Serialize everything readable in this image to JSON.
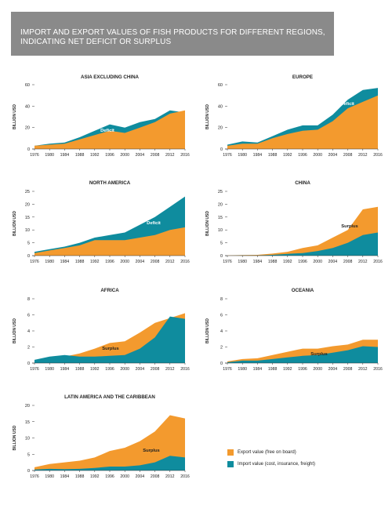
{
  "header": {
    "title": "IMPORT AND EXPORT VALUES OF FISH PRODUCTS FOR DIFFERENT REGIONS, INDICATING NET DEFICIT OR SURPLUS"
  },
  "colors": {
    "export": "#f39a2e",
    "import": "#0f8c9e",
    "banner": "#8a8a8a",
    "axis": "#333333"
  },
  "legend": {
    "export_label": "Export value (free on board)",
    "import_label": "Import value (cost, insurance, freight)"
  },
  "chart_data": [
    {
      "type": "area",
      "title": "ASIA EXCLUDING CHINA",
      "ylabel": "BILLION USD",
      "annotation": "Deficit",
      "ylim": [
        0,
        60
      ],
      "yticks": [
        0,
        20,
        40,
        60
      ],
      "x": [
        1976,
        1980,
        1984,
        1988,
        1992,
        1996,
        2000,
        2004,
        2008,
        2012,
        2016
      ],
      "xtick_labels": [
        "1976",
        "1980",
        "1984",
        "1988",
        "1992",
        "1996",
        "2000",
        "2004",
        "2008",
        "2012",
        "2016"
      ],
      "series": [
        {
          "name": "Export value (free on board)",
          "values": [
            3,
            4,
            5,
            9,
            13,
            17,
            15,
            20,
            25,
            33,
            36
          ]
        },
        {
          "name": "Import value (cost, insurance, freight)",
          "values": [
            3,
            5,
            6,
            11,
            17,
            23,
            20,
            25,
            28,
            36,
            34
          ]
        }
      ]
    },
    {
      "type": "area",
      "title": "EUROPE",
      "ylabel": "BILLION USD",
      "annotation": "Deficit",
      "ylim": [
        0,
        60
      ],
      "yticks": [
        0,
        20,
        40,
        60
      ],
      "x": [
        1976,
        1980,
        1984,
        1988,
        1992,
        1996,
        2000,
        2004,
        2008,
        2012,
        2016
      ],
      "xtick_labels": [
        "1976",
        "1980",
        "1984",
        "1988",
        "1992",
        "1996",
        "2000",
        "2004",
        "2008",
        "2012",
        "2016"
      ],
      "series": [
        {
          "name": "Export value (free on board)",
          "values": [
            3,
            5,
            5,
            10,
            14,
            17,
            18,
            26,
            38,
            44,
            50
          ]
        },
        {
          "name": "Import value (cost, insurance, freight)",
          "values": [
            4,
            7,
            6,
            12,
            18,
            22,
            22,
            32,
            46,
            55,
            57
          ]
        }
      ]
    },
    {
      "type": "area",
      "title": "NORTH AMERICA",
      "ylabel": "BILLION USD",
      "annotation": "Deficit",
      "ylim": [
        0,
        25
      ],
      "yticks": [
        0,
        5,
        10,
        15,
        20,
        25
      ],
      "x": [
        1976,
        1980,
        1984,
        1988,
        1992,
        1996,
        2000,
        2004,
        2008,
        2012,
        2016
      ],
      "xtick_labels": [
        "1976",
        "1980",
        "1984",
        "1988",
        "1992",
        "1996",
        "2000",
        "2004",
        "2008",
        "2012",
        "2016"
      ],
      "series": [
        {
          "name": "Export value (free on board)",
          "values": [
            1,
            2,
            3,
            4,
            6,
            6,
            6,
            7,
            8,
            10,
            11
          ]
        },
        {
          "name": "Import value (cost, insurance, freight)",
          "values": [
            1.5,
            2.5,
            3.5,
            5,
            7,
            8,
            9,
            12,
            15,
            19,
            23
          ]
        }
      ]
    },
    {
      "type": "area",
      "title": "CHINA",
      "ylabel": "BILLION USD",
      "annotation": "Surplus",
      "ylim": [
        0,
        25
      ],
      "yticks": [
        0,
        5,
        10,
        15,
        20,
        25
      ],
      "x": [
        1976,
        1980,
        1984,
        1988,
        1992,
        1996,
        2000,
        2004,
        2008,
        2012,
        2016
      ],
      "xtick_labels": [
        "1976",
        "1980",
        "1984",
        "1988",
        "1992",
        "1996",
        "2000",
        "2004",
        "2008",
        "2012",
        "2016"
      ],
      "series": [
        {
          "name": "Export value (free on board)",
          "values": [
            0.1,
            0.2,
            0.3,
            0.8,
            1.5,
            3,
            4,
            7,
            10,
            18,
            19
          ]
        },
        {
          "name": "Import value (cost, insurance, freight)",
          "values": [
            0,
            0.1,
            0.1,
            0.3,
            0.7,
            1,
            1.8,
            3,
            5,
            8,
            9
          ]
        }
      ]
    },
    {
      "type": "area",
      "title": "AFRICA",
      "ylabel": "BILLION USD",
      "annotation": "Surplus",
      "ylim": [
        0,
        8
      ],
      "yticks": [
        0,
        2,
        4,
        6,
        8
      ],
      "x": [
        1976,
        1980,
        1984,
        1988,
        1992,
        1996,
        2000,
        2004,
        2008,
        2012,
        2016
      ],
      "xtick_labels": [
        "1976",
        "1980",
        "1984",
        "1988",
        "1992",
        "1996",
        "2000",
        "2004",
        "2008",
        "2012",
        "2016"
      ],
      "series": [
        {
          "name": "Export value (free on board)",
          "values": [
            0.3,
            0.7,
            0.8,
            1.2,
            1.8,
            2.5,
            2.7,
            3.8,
            5,
            5.6,
            6.2
          ]
        },
        {
          "name": "Import value (cost, insurance, freight)",
          "values": [
            0.4,
            0.8,
            1,
            0.8,
            0.8,
            0.9,
            1,
            1.8,
            3.2,
            5.8,
            5.5
          ]
        }
      ]
    },
    {
      "type": "area",
      "title": "OCEANIA",
      "ylabel": "BILLION USD",
      "annotation": "Surplus",
      "ylim": [
        0,
        8
      ],
      "yticks": [
        0,
        2,
        4,
        6,
        8
      ],
      "x": [
        1976,
        1980,
        1984,
        1988,
        1992,
        1996,
        2000,
        2004,
        2008,
        2012,
        2016
      ],
      "xtick_labels": [
        "1976",
        "1980",
        "1984",
        "1988",
        "1992",
        "1996",
        "2000",
        "2004",
        "2008",
        "2012",
        "2016"
      ],
      "series": [
        {
          "name": "Export value (free on board)",
          "values": [
            0.2,
            0.5,
            0.6,
            1,
            1.4,
            1.8,
            1.8,
            2.1,
            2.3,
            2.9,
            2.9
          ]
        },
        {
          "name": "Import value (cost, insurance, freight)",
          "values": [
            0.1,
            0.3,
            0.3,
            0.5,
            0.7,
            0.9,
            1,
            1.3,
            1.6,
            2.1,
            2
          ]
        }
      ]
    },
    {
      "type": "area",
      "title": "LATIN AMERICA AND THE CARIBBEAN",
      "ylabel": "BILLION USD",
      "annotation": "Surplus",
      "ylim": [
        0,
        20
      ],
      "yticks": [
        0,
        5,
        10,
        15,
        20
      ],
      "x": [
        1976,
        1980,
        1984,
        1988,
        1992,
        1996,
        2000,
        2004,
        2008,
        2012,
        2016
      ],
      "xtick_labels": [
        "1976",
        "1980",
        "1984",
        "1988",
        "1992",
        "1996",
        "2000",
        "2004",
        "2008",
        "2012",
        "2016"
      ],
      "series": [
        {
          "name": "Export value (free on board)",
          "values": [
            1,
            2,
            2.5,
            3,
            4,
            6,
            7,
            9,
            12,
            17,
            16
          ]
        },
        {
          "name": "Import value (cost, insurance, freight)",
          "values": [
            0.3,
            0.5,
            0.4,
            0.5,
            0.8,
            1.2,
            1.2,
            1.6,
            2.5,
            4.5,
            4
          ]
        }
      ]
    }
  ]
}
